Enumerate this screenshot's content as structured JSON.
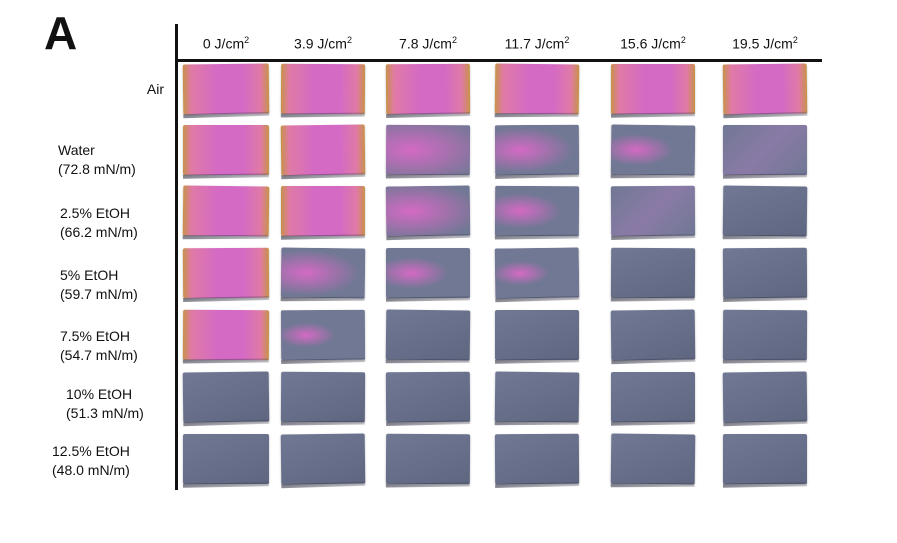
{
  "figure": {
    "panel_letter": "A"
  },
  "columns": [
    {
      "value": "0 J/cm",
      "sup": "2"
    },
    {
      "value": "3.9 J/cm",
      "sup": "2"
    },
    {
      "value": "7.8 J/cm",
      "sup": "2"
    },
    {
      "value": "11.7 J/cm",
      "sup": "2"
    },
    {
      "value": "15.6 J/cm",
      "sup": "2"
    },
    {
      "value": "19.5 J/cm",
      "sup": "2"
    }
  ],
  "rows": [
    {
      "line1": "Air",
      "line2": ""
    },
    {
      "line1": "Water",
      "line2": "(72.8 mN/m)"
    },
    {
      "line1": "2.5% EtOH",
      "line2": "(66.2 mN/m)"
    },
    {
      "line1": "5% EtOH",
      "line2": "(59.7 mN/m)"
    },
    {
      "line1": "7.5% EtOH",
      "line2": "(54.7 mN/m)"
    },
    {
      "line1": "10% EtOH",
      "line2": "(51.3 mN/m)"
    },
    {
      "line1": "12.5% EtOH",
      "line2": "(48.0 mN/m)"
    }
  ],
  "colors": {
    "magenta": "#d46ac4",
    "pink": "#e07aa6",
    "orange_edge": "#c8924a",
    "slate": "#707894",
    "slate_dark": "#5e6680"
  },
  "samples": [
    [
      1,
      1,
      1,
      1,
      1,
      1
    ],
    [
      1,
      1,
      0.9,
      0.55,
      0.35,
      0.15
    ],
    [
      1,
      1,
      0.75,
      0.4,
      0.2,
      0.05
    ],
    [
      1,
      0.55,
      0.35,
      0.25,
      0.1,
      0.05
    ],
    [
      1,
      0.25,
      0.05,
      0.05,
      0.05,
      0.05
    ],
    [
      0.08,
      0.05,
      0.05,
      0.05,
      0.05,
      0.05
    ],
    [
      0.05,
      0.05,
      0.05,
      0.05,
      0.05,
      0.05
    ]
  ]
}
